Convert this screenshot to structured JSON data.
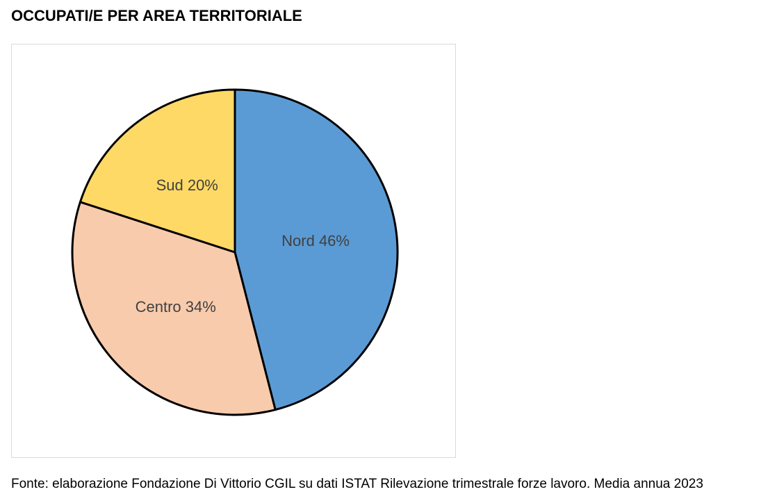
{
  "title": "OCCUPATI/E PER AREA TERRITORIALE",
  "source": "Fonte: elaborazione Fondazione Di Vittorio CGIL su dati ISTAT Rilevazione trimestrale forze lavoro. Media annua 2023",
  "chart_data": {
    "type": "pie",
    "title": "",
    "slices": [
      {
        "name": "Nord",
        "value": 46,
        "label": "Nord 46%",
        "color": "#5b9bd5"
      },
      {
        "name": "Centro",
        "value": 34,
        "label": "Centro 34%",
        "color": "#f8cbad"
      },
      {
        "name": "Sud",
        "value": 20,
        "label": "Sud 20%",
        "color": "#ffd966"
      }
    ],
    "start": "12 o'clock",
    "direction": "clockwise",
    "legend": "none",
    "data_labels": "inside"
  }
}
